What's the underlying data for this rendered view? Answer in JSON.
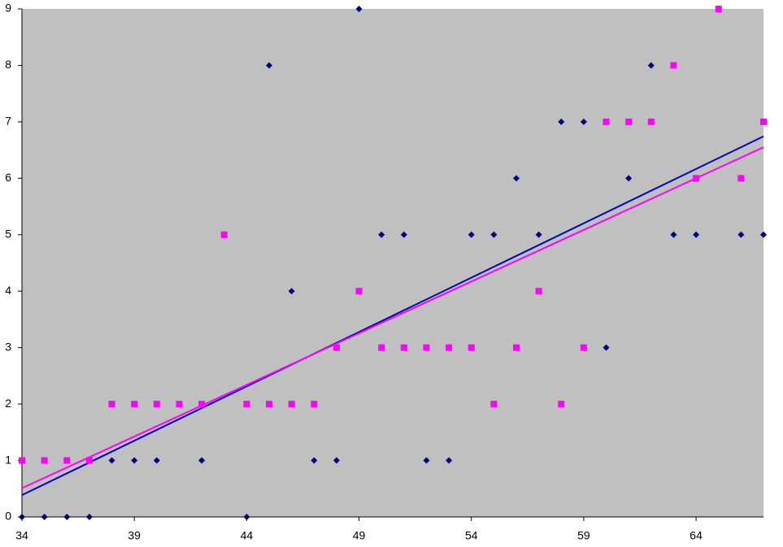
{
  "chart_data": {
    "type": "scatter",
    "xlim": [
      34,
      67
    ],
    "xticks": [
      34,
      39,
      44,
      49,
      54,
      59,
      64
    ],
    "ylim": [
      0,
      9
    ],
    "yticks": [
      0,
      1,
      2,
      3,
      4,
      5,
      6,
      7,
      8,
      9
    ],
    "grid": false,
    "trendline": "linear",
    "series": [
      {
        "color": "#000080",
        "marker": "diamond",
        "trendline_color": "#0000cc",
        "x": [
          34,
          35,
          36,
          37,
          38,
          39,
          40,
          42,
          44,
          45,
          46,
          47,
          48,
          49,
          50,
          51,
          52,
          53,
          54,
          55,
          56,
          57,
          58,
          59,
          60,
          61,
          62,
          63,
          64,
          66,
          67
        ],
        "values": [
          0,
          0,
          0,
          0,
          1,
          1,
          1,
          1,
          0,
          8,
          4,
          1,
          1,
          9,
          5,
          5,
          1,
          1,
          5,
          5,
          6,
          5,
          7,
          7,
          3,
          6,
          8,
          5,
          5,
          5,
          5
        ]
      },
      {
        "color": "#ff00ff",
        "marker": "square",
        "trendline_color": "#ff00ff",
        "x": [
          34,
          35,
          36,
          37,
          38,
          39,
          40,
          41,
          42,
          43,
          44,
          45,
          46,
          47,
          48,
          49,
          50,
          51,
          52,
          53,
          54,
          55,
          56,
          57,
          58,
          59,
          60,
          61,
          62,
          63,
          64,
          65,
          66,
          67
        ],
        "values": [
          1,
          1,
          1,
          1,
          2,
          2,
          2,
          2,
          2,
          5,
          2,
          2,
          2,
          2,
          3,
          4,
          3,
          3,
          3,
          3,
          3,
          2,
          3,
          4,
          2,
          3,
          7,
          7,
          7,
          8,
          6,
          9,
          6,
          7
        ]
      }
    ]
  }
}
